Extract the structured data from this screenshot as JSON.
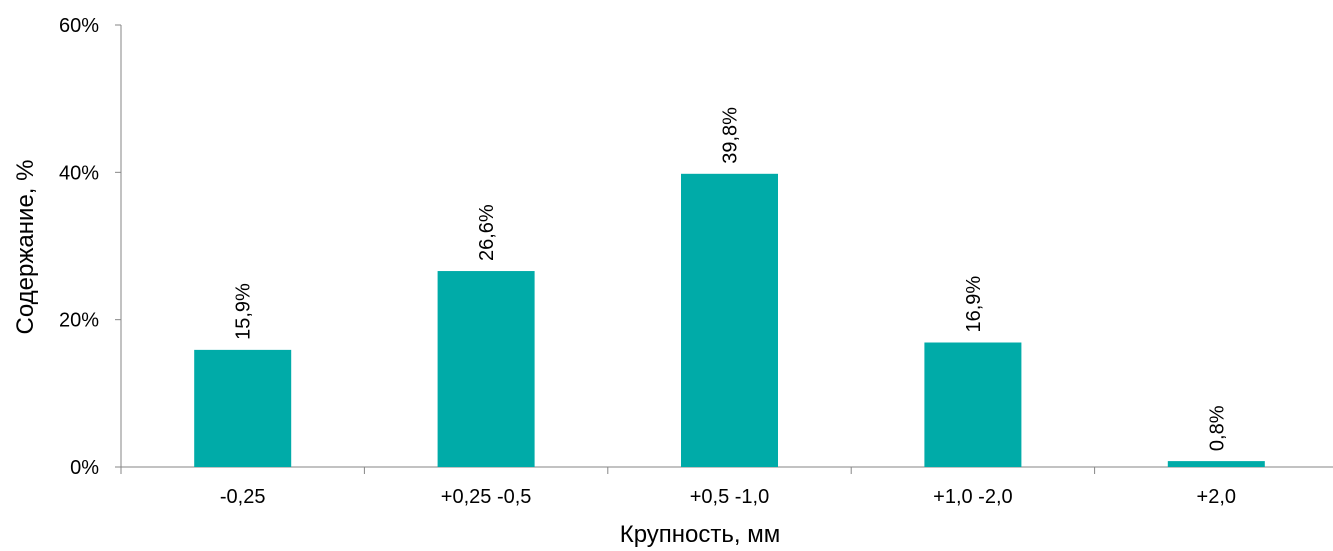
{
  "chart_data": {
    "type": "bar",
    "categories": [
      "-0,25",
      "+0,25 -0,5",
      "+0,5 -1,0",
      "+1,0 -2,0",
      "+2,0"
    ],
    "values": [
      15.9,
      26.6,
      39.8,
      16.9,
      0.8
    ],
    "data_labels": [
      "15,9%",
      "26,6%",
      "39,8%",
      "16,9%",
      "0,8%"
    ],
    "xlabel": "Крупность, мм",
    "ylabel": "Содержание, %",
    "ylim": [
      0,
      60
    ],
    "yticks": [
      0,
      20,
      40,
      60
    ],
    "ytick_labels": [
      "0%",
      "20%",
      "40%",
      "60%"
    ],
    "bar_color": "#00ABA8",
    "grid": false,
    "legend": "none"
  }
}
